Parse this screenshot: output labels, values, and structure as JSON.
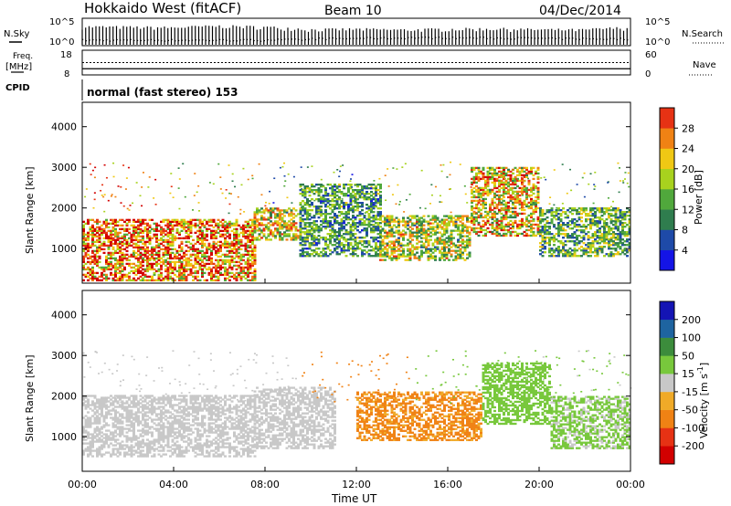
{
  "header": {
    "station": "Hokkaido West (fitACF)",
    "beam": "Beam 10",
    "date": "04/Dec/2014"
  },
  "status_panel": {
    "nsky_label": "N.Sky",
    "nsky_top": "10^5",
    "nsky_bottom": "10^0",
    "nsearch_label": "N.Search",
    "freq_label_1": "Freq.",
    "freq_label_2": "[MHz]",
    "freq_top": "18",
    "freq_bottom": "8",
    "nave_label": "Nave",
    "nave_top": "60",
    "nave_bottom": "0",
    "cpid_label": "CPID",
    "cpid_value": "normal (fast stereo) 153"
  },
  "axes": {
    "time_ticks": [
      "00:00",
      "04:00",
      "08:00",
      "12:00",
      "16:00",
      "20:00",
      "00:00"
    ],
    "xlabel": "Time UT",
    "range_ticks": [
      "1000",
      "2000",
      "3000",
      "4000"
    ],
    "ylabel": "Slant Range [km]"
  },
  "colors": {
    "power_scale": [
      "#1414e6",
      "#1e4aa8",
      "#2f7d4e",
      "#50a83c",
      "#a8d21e",
      "#f0c814",
      "#f08214",
      "#e63214",
      "#d20000"
    ],
    "velocity_scale": [
      "#d20000",
      "#e63214",
      "#f08214",
      "#f0aa28",
      "#c8c8c8",
      "#78c83c",
      "#3c8c3c",
      "#1e64a0",
      "#1414b4"
    ]
  },
  "chart_data": [
    {
      "type": "line",
      "panel": "N.Sky / N.Search",
      "x": [
        "00:00",
        "02:00",
        "04:00",
        "06:00",
        "08:00",
        "10:00",
        "12:00",
        "14:00",
        "16:00",
        "18:00",
        "20:00",
        "22:00",
        "24:00"
      ],
      "series": [
        {
          "name": "N.Sky",
          "values": [
            3000,
            2500,
            2000,
            4000,
            2500,
            800,
            1000,
            700,
            1000,
            1200,
            800,
            700,
            2000
          ]
        },
        {
          "name": "N.Search",
          "values": [
            10,
            10,
            10,
            10,
            12,
            20,
            25,
            30,
            28,
            25,
            20,
            18,
            15
          ]
        }
      ],
      "y_scale": "log",
      "ylim": [
        1,
        100000
      ]
    },
    {
      "type": "line",
      "panel": "Freq. / Nave",
      "x": [
        "00:00",
        "24:00"
      ],
      "series": [
        {
          "name": "Freq.",
          "values": [
            10.5,
            10.5
          ]
        },
        {
          "name": "Nave",
          "values": [
            30,
            30
          ]
        }
      ],
      "ylim_freq": [
        8,
        18
      ],
      "ylim_nave": [
        0,
        60
      ]
    },
    {
      "type": "heatmap",
      "panel": "power",
      "title": "Power [dB]",
      "xlim": [
        0,
        24
      ],
      "ylim": [
        150,
        4600
      ],
      "colorbar_ticks": [
        "4",
        "8",
        "12",
        "16",
        "20",
        "24",
        "28"
      ],
      "colorbar_label": "Power [dB]",
      "echo_regions": [
        {
          "t0": 0.0,
          "t1": 7.5,
          "r0": 200,
          "r1": 1700,
          "level": 26
        },
        {
          "t0": 7.5,
          "t1": 9.5,
          "r0": 1200,
          "r1": 2000,
          "level": 20
        },
        {
          "t0": 9.5,
          "t1": 13.0,
          "r0": 800,
          "r1": 2600,
          "level": 12
        },
        {
          "t0": 13.0,
          "t1": 17.0,
          "r0": 700,
          "r1": 1800,
          "level": 18
        },
        {
          "t0": 17.0,
          "t1": 20.0,
          "r0": 1300,
          "r1": 3000,
          "level": 22
        },
        {
          "t0": 20.0,
          "t1": 24.0,
          "r0": 800,
          "r1": 2000,
          "level": 14
        }
      ]
    },
    {
      "type": "heatmap",
      "panel": "velocity",
      "title": "Velocity [m s^-1]",
      "xlim": [
        0,
        24
      ],
      "ylim": [
        150,
        4600
      ],
      "colorbar_ticks": [
        "-200",
        "-100",
        "-50",
        "-15",
        "15",
        "50",
        "100",
        "200"
      ],
      "colorbar_label": "Velocity [m s",
      "colorbar_label_sup": "-1",
      "echo_regions": [
        {
          "t0": 0.0,
          "t1": 7.5,
          "r0": 500,
          "r1": 2000,
          "level": 0
        },
        {
          "t0": 7.5,
          "t1": 11.0,
          "r0": 700,
          "r1": 2200,
          "level": -5
        },
        {
          "t0": 12.0,
          "t1": 17.5,
          "r0": 900,
          "r1": 2100,
          "level": -60
        },
        {
          "t0": 17.5,
          "t1": 20.5,
          "r0": 1300,
          "r1": 2800,
          "level": 30
        },
        {
          "t0": 20.5,
          "t1": 24.0,
          "r0": 700,
          "r1": 2000,
          "level": 20
        }
      ]
    }
  ]
}
